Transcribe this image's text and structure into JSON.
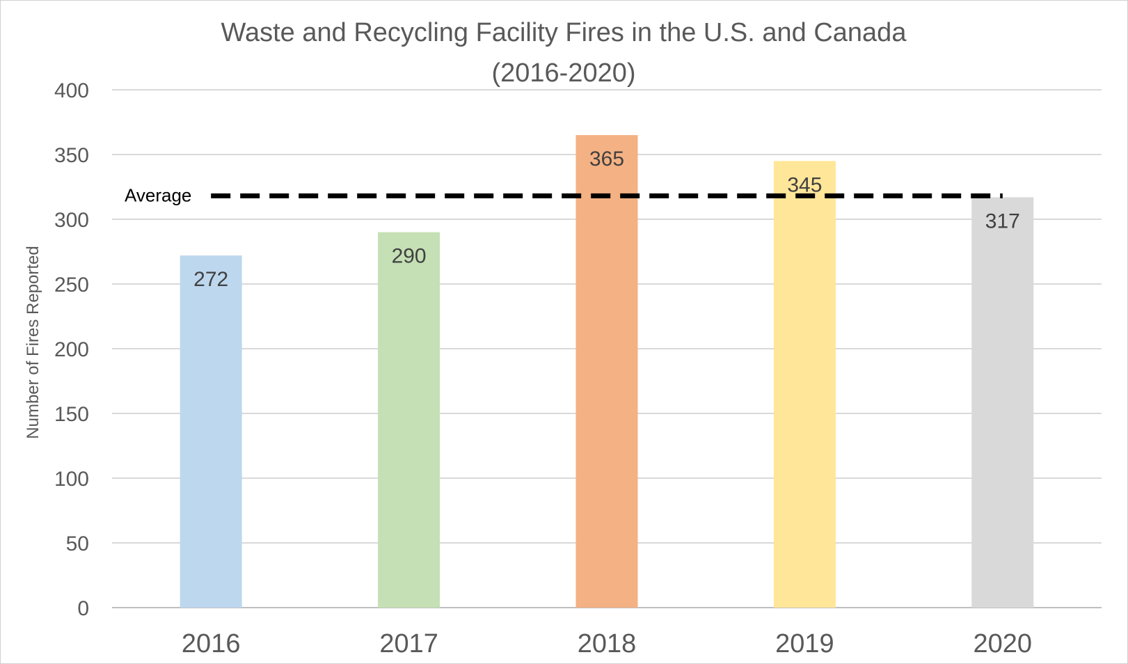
{
  "chart_data": {
    "type": "bar",
    "title": "Waste and Recycling Facility Fires in the U.S. and Canada",
    "subtitle": "(2016-2020)",
    "xlabel": "",
    "ylabel": "Number of Fires Reported",
    "categories": [
      "2016",
      "2017",
      "2018",
      "2019",
      "2020"
    ],
    "values": [
      272,
      290,
      365,
      345,
      317
    ],
    "colors": [
      "#bdd7ee",
      "#c5e0b4",
      "#f4b183",
      "#ffe699",
      "#d9d9d9"
    ],
    "ylim": [
      0,
      400
    ],
    "yticks": [
      0,
      50,
      100,
      150,
      200,
      250,
      300,
      350,
      400
    ],
    "grid": true,
    "data_labels": [
      "272",
      "290",
      "365",
      "345",
      "317"
    ],
    "reference_line": {
      "label": "Average",
      "value": 317,
      "style": "dashed",
      "color": "#000000"
    }
  }
}
